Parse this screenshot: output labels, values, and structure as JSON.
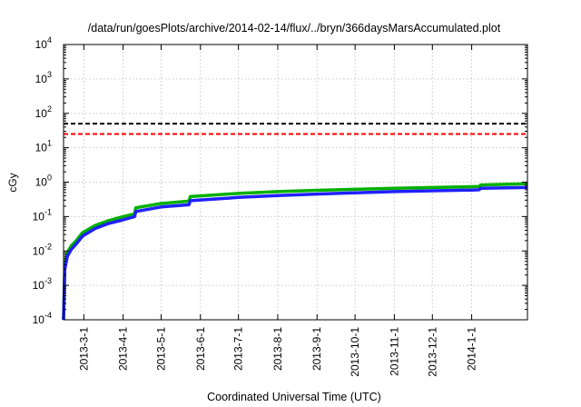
{
  "chart_data": {
    "type": "line",
    "title": "/data/run/goesPlots/archive/2014-02-14/flux/../bryn/366daysMarsAccumulated.plot",
    "xlabel": "Coordinated Universal Time (UTC)",
    "ylabel": "cGy",
    "yscale": "log",
    "ylim_exponents": [
      -4,
      4
    ],
    "y_ticks": [
      {
        "base": "10",
        "exp": "-4"
      },
      {
        "base": "10",
        "exp": "-3"
      },
      {
        "base": "10",
        "exp": "-2"
      },
      {
        "base": "10",
        "exp": "-1"
      },
      {
        "base": "10",
        "exp": "0"
      },
      {
        "base": "10",
        "exp": "1"
      },
      {
        "base": "10",
        "exp": "2"
      },
      {
        "base": "10",
        "exp": "3"
      },
      {
        "base": "10",
        "exp": "4"
      }
    ],
    "xlim": [
      "2013-02-13",
      "2014-02-14"
    ],
    "x_ticks": [
      "2013-3-1",
      "2013-4-1",
      "2013-5-1",
      "2013-6-1",
      "2013-7-1",
      "2013-8-1",
      "2013-9-1",
      "2013-10-1",
      "2013-11-1",
      "2013-12-1",
      "2014-1-1"
    ],
    "grid": true,
    "reference_lines": [
      {
        "y": 50,
        "color": "#000000",
        "style": "dashed"
      },
      {
        "y": 25,
        "color": "#ff0000",
        "style": "dashed"
      }
    ],
    "series": [
      {
        "color": "#00b000",
        "x": [
          "2013-02-13",
          "2013-02-14",
          "2013-02-16",
          "2013-02-19",
          "2013-02-23",
          "2013-02-28",
          "2013-03-10",
          "2013-03-20",
          "2013-04-01",
          "2013-04-10",
          "2013-04-11",
          "2013-05-01",
          "2013-05-23",
          "2013-05-24",
          "2013-07-01",
          "2013-08-01",
          "2013-09-01",
          "2013-10-01",
          "2013-11-01",
          "2013-12-01",
          "2014-01-01",
          "2014-01-07",
          "2014-01-08",
          "2014-02-14"
        ],
        "y": [
          0.0001,
          0.004,
          0.009,
          0.014,
          0.02,
          0.034,
          0.055,
          0.075,
          0.1,
          0.12,
          0.18,
          0.24,
          0.28,
          0.38,
          0.47,
          0.53,
          0.58,
          0.62,
          0.66,
          0.7,
          0.74,
          0.75,
          0.83,
          0.9
        ]
      },
      {
        "color": "#2020ff",
        "x": [
          "2013-02-13",
          "2013-02-14",
          "2013-02-16",
          "2013-02-19",
          "2013-02-23",
          "2013-02-28",
          "2013-03-10",
          "2013-03-20",
          "2013-04-01",
          "2013-04-10",
          "2013-04-11",
          "2013-05-01",
          "2013-05-23",
          "2013-05-24",
          "2013-07-01",
          "2013-08-01",
          "2013-09-01",
          "2013-10-01",
          "2013-11-01",
          "2013-12-01",
          "2014-01-01",
          "2014-01-07",
          "2014-01-08",
          "2014-02-14"
        ],
        "y": [
          0.0001,
          0.003,
          0.007,
          0.011,
          0.016,
          0.027,
          0.045,
          0.062,
          0.08,
          0.1,
          0.14,
          0.19,
          0.22,
          0.29,
          0.36,
          0.41,
          0.45,
          0.49,
          0.53,
          0.56,
          0.59,
          0.6,
          0.66,
          0.7
        ]
      }
    ]
  }
}
